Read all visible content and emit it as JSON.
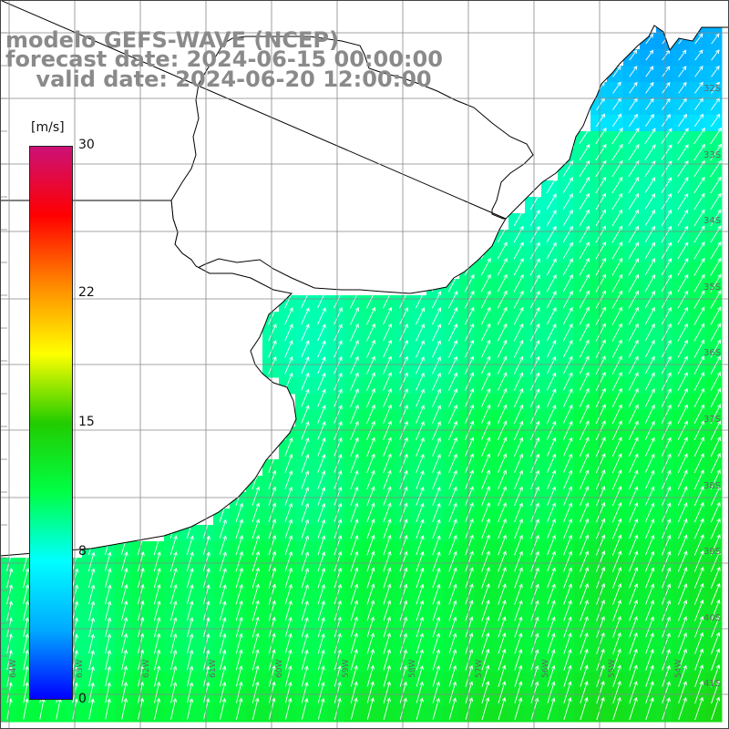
{
  "title": {
    "line1": "modelo GEFS-WAVE (NCEP)",
    "line2": "forecast date: 2024-06-15 00:00:00",
    "line3": "valid date: 2024-06-20 12:00:00"
  },
  "colorbar": {
    "unit": "[m/s]",
    "ticks": [
      "30",
      "22",
      "15",
      "8",
      "0"
    ],
    "tick_values": [
      30,
      22,
      15,
      8,
      0
    ],
    "min": 0,
    "max": 30,
    "colors": [
      "#0000ff",
      "#00aaff",
      "#00ffff",
      "#00ff44",
      "#22cc00",
      "#ffff00",
      "#ff8800",
      "#ff0000",
      "#cc1177"
    ]
  },
  "map": {
    "lat_labels": [
      "32S",
      "33S",
      "34S",
      "35S",
      "36S",
      "37S",
      "38S",
      "39S",
      "40S",
      "41S"
    ],
    "lon_labels": [
      "64W",
      "63W",
      "62W",
      "61W",
      "60W",
      "59W",
      "58W",
      "57W",
      "56W",
      "55W",
      "54W"
    ],
    "land_color": "#ffffff",
    "grid_color": "#888888",
    "arrow_color": "#ffffff",
    "wind_speed_field": "south-west to north-east flow, about 8 m/s near coast increasing to about 12-13 m/s in the south-east"
  }
}
